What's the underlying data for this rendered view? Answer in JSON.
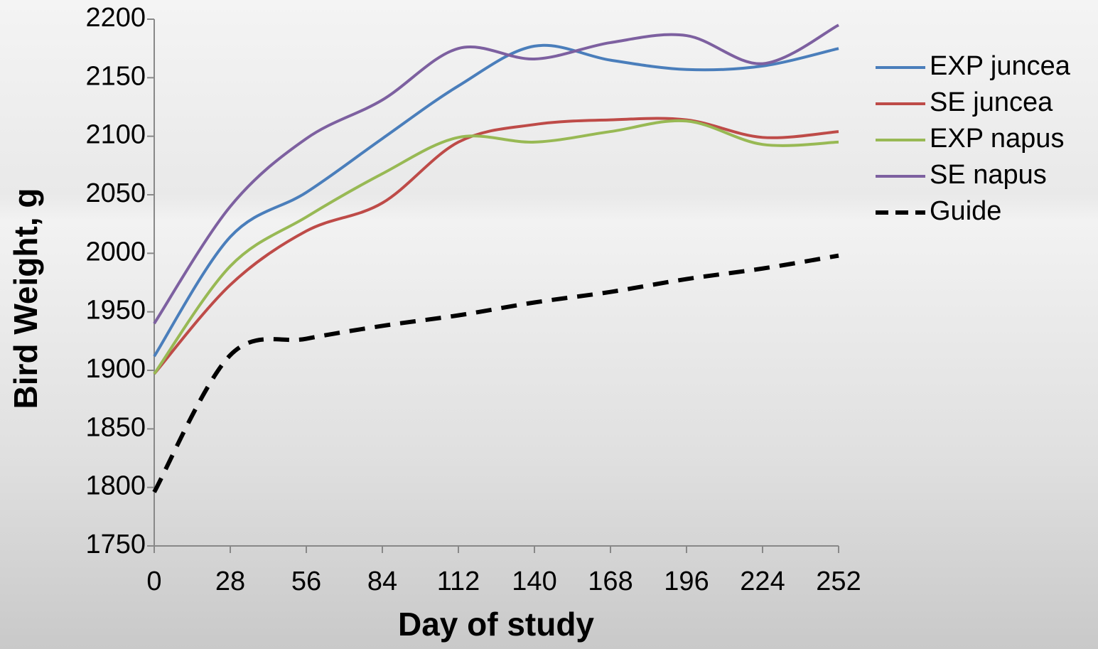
{
  "chart_data": {
    "type": "line",
    "x_label": "Day of study",
    "y_label": "Bird Weight, g",
    "x": [
      0,
      28,
      56,
      84,
      112,
      140,
      168,
      196,
      224,
      252
    ],
    "xlim": [
      0,
      252
    ],
    "xticks": [
      0,
      28,
      56,
      84,
      112,
      140,
      168,
      196,
      224,
      252
    ],
    "ylim": [
      1750,
      2200
    ],
    "yticks": [
      1750,
      1800,
      1850,
      1900,
      1950,
      2000,
      2050,
      2100,
      2150,
      2200
    ],
    "smooth": true,
    "series": [
      {
        "name": "EXP juncea",
        "color": "#4a7ebb",
        "values": [
          1912,
          2014,
          2052,
          2098,
          2143,
          2177,
          2165,
          2157,
          2160,
          2175
        ]
      },
      {
        "name": "SE juncea",
        "color": "#be4b48",
        "values": [
          1897,
          1973,
          2019,
          2043,
          2095,
          2110,
          2114,
          2114,
          2099,
          2104
        ]
      },
      {
        "name": "EXP napus",
        "color": "#98b954",
        "values": [
          1897,
          1989,
          2031,
          2068,
          2099,
          2095,
          2104,
          2113,
          2093,
          2095
        ]
      },
      {
        "name": "SE napus",
        "color": "#7d60a0",
        "values": [
          1940,
          2040,
          2098,
          2131,
          2175,
          2166,
          2180,
          2186,
          2162,
          2195
        ]
      },
      {
        "name": "Guide",
        "color": "#000000",
        "dashed": true,
        "values": [
          1796,
          1913,
          1927,
          1938,
          1947,
          1958,
          1967,
          1978,
          1987,
          1998
        ]
      }
    ]
  }
}
